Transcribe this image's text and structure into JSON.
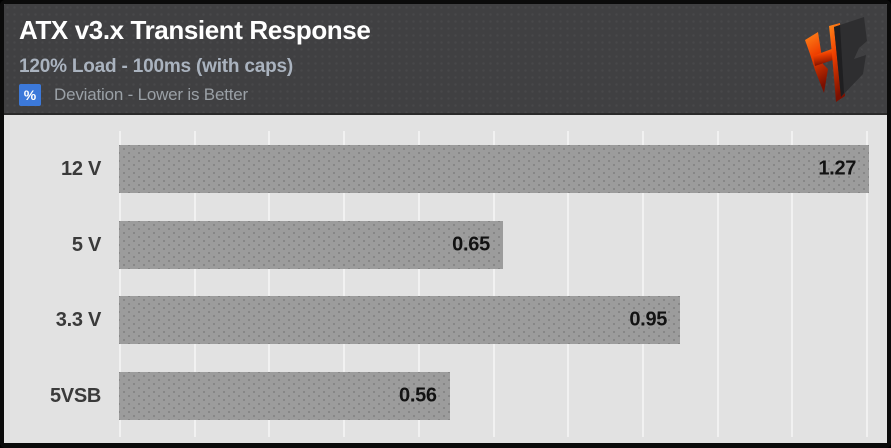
{
  "header": {
    "title": "ATX v3.x Transient Response",
    "subtitle": "120% Load - 100ms (with caps)",
    "unit_badge": "%",
    "unit_label": "Deviation - Lower is Better"
  },
  "icons": {
    "logo": "hb-shield-logo",
    "unit_badge": "percent-badge"
  },
  "colors": {
    "header_bg": "#404042",
    "plot_bg": "#e2e2e2",
    "bar": "#9c9c9c",
    "badge_blue": "#3c79da",
    "title_text": "#ffffff",
    "subtitle_text": "#aab3bf",
    "value_text": "#121212",
    "logo_orange": "#f04400",
    "logo_dark": "#2e2e30"
  },
  "chart_data": {
    "type": "bar",
    "orientation": "horizontal",
    "title": "ATX v3.x Transient Response",
    "subtitle": "120% Load - 100ms (with caps)",
    "xlabel": "% Deviation - Lower is Better",
    "categories": [
      "12 V",
      "5 V",
      "3.3 V",
      "5VSB"
    ],
    "values": [
      1.27,
      0.65,
      0.95,
      0.56
    ],
    "value_labels": [
      "1.27",
      "0.65",
      "0.95",
      "0.56"
    ],
    "xlim": [
      0,
      1.28
    ],
    "grid": true,
    "gridline_count": 11,
    "legend": false,
    "note": "lower is better"
  }
}
